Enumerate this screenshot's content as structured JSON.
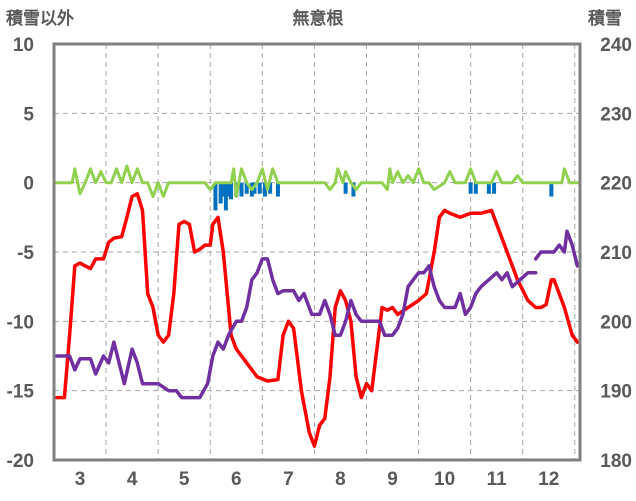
{
  "chart_data": {
    "type": "line",
    "title": "無意根",
    "left_axis": {
      "label": "積雪以外",
      "range": [
        -20,
        10
      ],
      "ticks": [
        "10",
        "5",
        "0",
        "-5",
        "-10",
        "-15",
        "-20"
      ]
    },
    "right_axis": {
      "label": "積雪",
      "range": [
        180,
        240
      ],
      "ticks": [
        "240",
        "230",
        "220",
        "210",
        "200",
        "190",
        "180"
      ]
    },
    "x_axis": {
      "range": [
        2.5,
        12.6
      ],
      "ticks": [
        "3",
        "4",
        "5",
        "6",
        "7",
        "8",
        "9",
        "10",
        "11",
        "12"
      ]
    },
    "grid": true,
    "colors": {
      "red": "#ff0000",
      "purple": "#7030a0",
      "green": "#92d050",
      "blue": "#0070c0",
      "frame": "#808080"
    },
    "series": [
      {
        "axis": "left",
        "color": "#ff0000",
        "points": [
          [
            2.55,
            -15.5
          ],
          [
            2.7,
            -15.5
          ],
          [
            2.8,
            -11
          ],
          [
            2.9,
            -6
          ],
          [
            3.0,
            -5.8
          ],
          [
            3.1,
            -6
          ],
          [
            3.2,
            -6.2
          ],
          [
            3.3,
            -5.5
          ],
          [
            3.45,
            -5.5
          ],
          [
            3.55,
            -4.3
          ],
          [
            3.65,
            -4
          ],
          [
            3.8,
            -3.9
          ],
          [
            3.9,
            -2.5
          ],
          [
            4.0,
            -1
          ],
          [
            4.1,
            -0.8
          ],
          [
            4.2,
            -2
          ],
          [
            4.3,
            -8
          ],
          [
            4.4,
            -9
          ],
          [
            4.5,
            -11
          ],
          [
            4.6,
            -11.5
          ],
          [
            4.7,
            -11
          ],
          [
            4.8,
            -8
          ],
          [
            4.9,
            -3
          ],
          [
            5.0,
            -2.8
          ],
          [
            5.1,
            -3
          ],
          [
            5.2,
            -5
          ],
          [
            5.3,
            -4.8
          ],
          [
            5.4,
            -4.5
          ],
          [
            5.5,
            -4.5
          ],
          [
            5.55,
            -3
          ],
          [
            5.65,
            -2.5
          ],
          [
            5.75,
            -5
          ],
          [
            5.9,
            -11
          ],
          [
            6.0,
            -12
          ],
          [
            6.2,
            -13
          ],
          [
            6.4,
            -14
          ],
          [
            6.6,
            -14.3
          ],
          [
            6.8,
            -14.2
          ],
          [
            6.9,
            -11
          ],
          [
            7.0,
            -10
          ],
          [
            7.1,
            -10.5
          ],
          [
            7.25,
            -15
          ],
          [
            7.4,
            -18
          ],
          [
            7.5,
            -19
          ],
          [
            7.6,
            -17.5
          ],
          [
            7.7,
            -17
          ],
          [
            7.8,
            -14
          ],
          [
            7.9,
            -9
          ],
          [
            8.0,
            -7.8
          ],
          [
            8.1,
            -8.5
          ],
          [
            8.2,
            -10
          ],
          [
            8.3,
            -14
          ],
          [
            8.4,
            -15.5
          ],
          [
            8.5,
            -14.5
          ],
          [
            8.6,
            -15
          ],
          [
            8.7,
            -12
          ],
          [
            8.8,
            -9
          ],
          [
            8.9,
            -9.2
          ],
          [
            9.0,
            -9
          ],
          [
            9.1,
            -9.5
          ],
          [
            9.3,
            -9
          ],
          [
            9.5,
            -8.5
          ],
          [
            9.65,
            -8
          ],
          [
            9.8,
            -5
          ],
          [
            9.9,
            -2.5
          ],
          [
            10.0,
            -2
          ],
          [
            10.1,
            -2.2
          ],
          [
            10.3,
            -2.5
          ],
          [
            10.5,
            -2.2
          ],
          [
            10.7,
            -2.2
          ],
          [
            10.9,
            -2
          ],
          [
            11.0,
            -3
          ],
          [
            11.2,
            -5
          ],
          [
            11.4,
            -7
          ],
          [
            11.6,
            -8.5
          ],
          [
            11.75,
            -9
          ],
          [
            11.85,
            -9
          ],
          [
            11.95,
            -8.8
          ],
          [
            12.05,
            -7
          ],
          [
            12.1,
            -7
          ],
          [
            12.2,
            -8
          ],
          [
            12.3,
            -9
          ],
          [
            12.45,
            -11
          ],
          [
            12.55,
            -11.5
          ]
        ]
      },
      {
        "axis": "left",
        "color": "#7030a0",
        "points": [
          [
            2.55,
            -12.5
          ],
          [
            2.8,
            -12.5
          ],
          [
            2.9,
            -13.5
          ],
          [
            3.0,
            -12.7
          ],
          [
            3.2,
            -12.7
          ],
          [
            3.3,
            -13.8
          ],
          [
            3.45,
            -12.5
          ],
          [
            3.55,
            -13
          ],
          [
            3.65,
            -11.5
          ],
          [
            3.75,
            -13
          ],
          [
            3.85,
            -14.5
          ],
          [
            4.0,
            -12
          ],
          [
            4.1,
            -13
          ],
          [
            4.2,
            -14.5
          ],
          [
            4.5,
            -14.5
          ],
          [
            4.7,
            -15
          ],
          [
            4.85,
            -15
          ],
          [
            4.95,
            -15.5
          ],
          [
            5.1,
            -15.5
          ],
          [
            5.3,
            -15.5
          ],
          [
            5.45,
            -14.5
          ],
          [
            5.55,
            -12.5
          ],
          [
            5.65,
            -11.5
          ],
          [
            5.75,
            -12
          ],
          [
            5.85,
            -11
          ],
          [
            6.0,
            -10
          ],
          [
            6.1,
            -10
          ],
          [
            6.2,
            -9
          ],
          [
            6.3,
            -7
          ],
          [
            6.4,
            -6.5
          ],
          [
            6.5,
            -5.5
          ],
          [
            6.6,
            -5.5
          ],
          [
            6.7,
            -7
          ],
          [
            6.8,
            -8
          ],
          [
            6.9,
            -7.8
          ],
          [
            7.1,
            -7.8
          ],
          [
            7.2,
            -8.5
          ],
          [
            7.3,
            -8
          ],
          [
            7.45,
            -9.5
          ],
          [
            7.6,
            -9.5
          ],
          [
            7.7,
            -8.5
          ],
          [
            7.8,
            -9.5
          ],
          [
            7.9,
            -11
          ],
          [
            8.0,
            -11
          ],
          [
            8.1,
            -10
          ],
          [
            8.2,
            -8.5
          ],
          [
            8.3,
            -9.5
          ],
          [
            8.4,
            -10
          ],
          [
            8.6,
            -10
          ],
          [
            8.75,
            -10
          ],
          [
            8.85,
            -11
          ],
          [
            9.0,
            -11
          ],
          [
            9.1,
            -10.5
          ],
          [
            9.2,
            -9.5
          ],
          [
            9.3,
            -7.5
          ],
          [
            9.4,
            -7
          ],
          [
            9.5,
            -6.5
          ],
          [
            9.6,
            -6.5
          ],
          [
            9.7,
            -6
          ],
          [
            9.8,
            -7.5
          ],
          [
            9.9,
            -8.5
          ],
          [
            10.0,
            -9
          ],
          [
            10.2,
            -9
          ],
          [
            10.3,
            -8
          ],
          [
            10.4,
            -9.5
          ],
          [
            10.5,
            -9
          ],
          [
            10.6,
            -8
          ],
          [
            10.7,
            -7.5
          ],
          [
            10.85,
            -7
          ],
          [
            11.0,
            -6.5
          ],
          [
            11.1,
            -7
          ],
          [
            11.2,
            -6.5
          ],
          [
            11.3,
            -7.5
          ],
          [
            11.45,
            -7
          ],
          [
            11.6,
            -6.5
          ],
          [
            11.75,
            -6.5
          ]
        ]
      },
      {
        "axis": "left",
        "color": "#7030a0",
        "points": [
          [
            11.75,
            -5.5
          ],
          [
            11.85,
            -5
          ],
          [
            12.1,
            -5
          ],
          [
            12.2,
            -4.5
          ],
          [
            12.3,
            -5
          ],
          [
            12.35,
            -3.5
          ],
          [
            12.45,
            -4.5
          ],
          [
            12.55,
            -6
          ]
        ]
      },
      {
        "axis": "left",
        "color": "#92d050",
        "points": [
          [
            2.55,
            0
          ],
          [
            2.85,
            0
          ],
          [
            2.9,
            1
          ],
          [
            3.0,
            -0.8
          ],
          [
            3.1,
            0
          ],
          [
            3.2,
            1
          ],
          [
            3.3,
            0
          ],
          [
            3.4,
            0.8
          ],
          [
            3.5,
            0
          ],
          [
            3.6,
            0
          ],
          [
            3.7,
            1
          ],
          [
            3.8,
            0
          ],
          [
            3.9,
            1.2
          ],
          [
            4.0,
            0
          ],
          [
            4.1,
            1
          ],
          [
            4.2,
            0
          ],
          [
            4.3,
            0
          ],
          [
            4.4,
            -1
          ],
          [
            4.5,
            0
          ],
          [
            4.6,
            -1
          ],
          [
            4.7,
            0
          ],
          [
            5.4,
            0
          ],
          [
            5.5,
            -0.5
          ],
          [
            5.6,
            0
          ],
          [
            5.9,
            0
          ],
          [
            5.95,
            1
          ],
          [
            6.0,
            -1
          ],
          [
            6.1,
            1
          ],
          [
            6.2,
            0
          ],
          [
            6.3,
            -0.5
          ],
          [
            6.4,
            0
          ],
          [
            6.5,
            1
          ],
          [
            6.6,
            -0.5
          ],
          [
            6.7,
            1
          ],
          [
            6.8,
            0
          ],
          [
            7.7,
            0
          ],
          [
            7.8,
            -0.5
          ],
          [
            7.9,
            0
          ],
          [
            7.95,
            1
          ],
          [
            8.05,
            0
          ],
          [
            8.1,
            0.8
          ],
          [
            8.2,
            0
          ],
          [
            8.3,
            -0.5
          ],
          [
            8.4,
            0
          ],
          [
            8.8,
            0
          ],
          [
            8.9,
            -0.5
          ],
          [
            8.95,
            1
          ],
          [
            9.0,
            0
          ],
          [
            9.1,
            0.8
          ],
          [
            9.2,
            0
          ],
          [
            9.3,
            0.5
          ],
          [
            9.4,
            0
          ],
          [
            9.5,
            1
          ],
          [
            9.6,
            0
          ],
          [
            9.7,
            0
          ],
          [
            9.8,
            -0.5
          ],
          [
            10.0,
            0
          ],
          [
            10.1,
            0.8
          ],
          [
            10.2,
            0
          ],
          [
            10.4,
            0
          ],
          [
            10.5,
            1
          ],
          [
            10.6,
            0
          ],
          [
            10.9,
            0
          ],
          [
            11.0,
            0.8
          ],
          [
            11.1,
            0
          ],
          [
            11.3,
            0
          ],
          [
            11.4,
            0.5
          ],
          [
            11.5,
            0
          ],
          [
            12.25,
            0
          ],
          [
            12.3,
            1
          ],
          [
            12.4,
            0
          ],
          [
            12.55,
            0
          ]
        ]
      }
    ],
    "bars": {
      "axis": "left",
      "color": "#0070c0",
      "items": [
        [
          5.6,
          -2
        ],
        [
          5.7,
          -1.5
        ],
        [
          5.75,
          -1
        ],
        [
          5.8,
          -2
        ],
        [
          5.85,
          -1
        ],
        [
          5.9,
          -1.2
        ],
        [
          6.0,
          -1
        ],
        [
          6.1,
          -1
        ],
        [
          6.2,
          -0.8
        ],
        [
          6.3,
          -1
        ],
        [
          6.35,
          -0.8
        ],
        [
          6.45,
          -0.8
        ],
        [
          6.55,
          -1
        ],
        [
          6.65,
          -0.8
        ],
        [
          6.8,
          -1
        ],
        [
          8.1,
          -0.8
        ],
        [
          8.25,
          -1
        ],
        [
          10.5,
          -0.8
        ],
        [
          10.6,
          -0.8
        ],
        [
          10.85,
          -0.8
        ],
        [
          10.95,
          -0.8
        ],
        [
          12.05,
          -1
        ]
      ]
    }
  }
}
